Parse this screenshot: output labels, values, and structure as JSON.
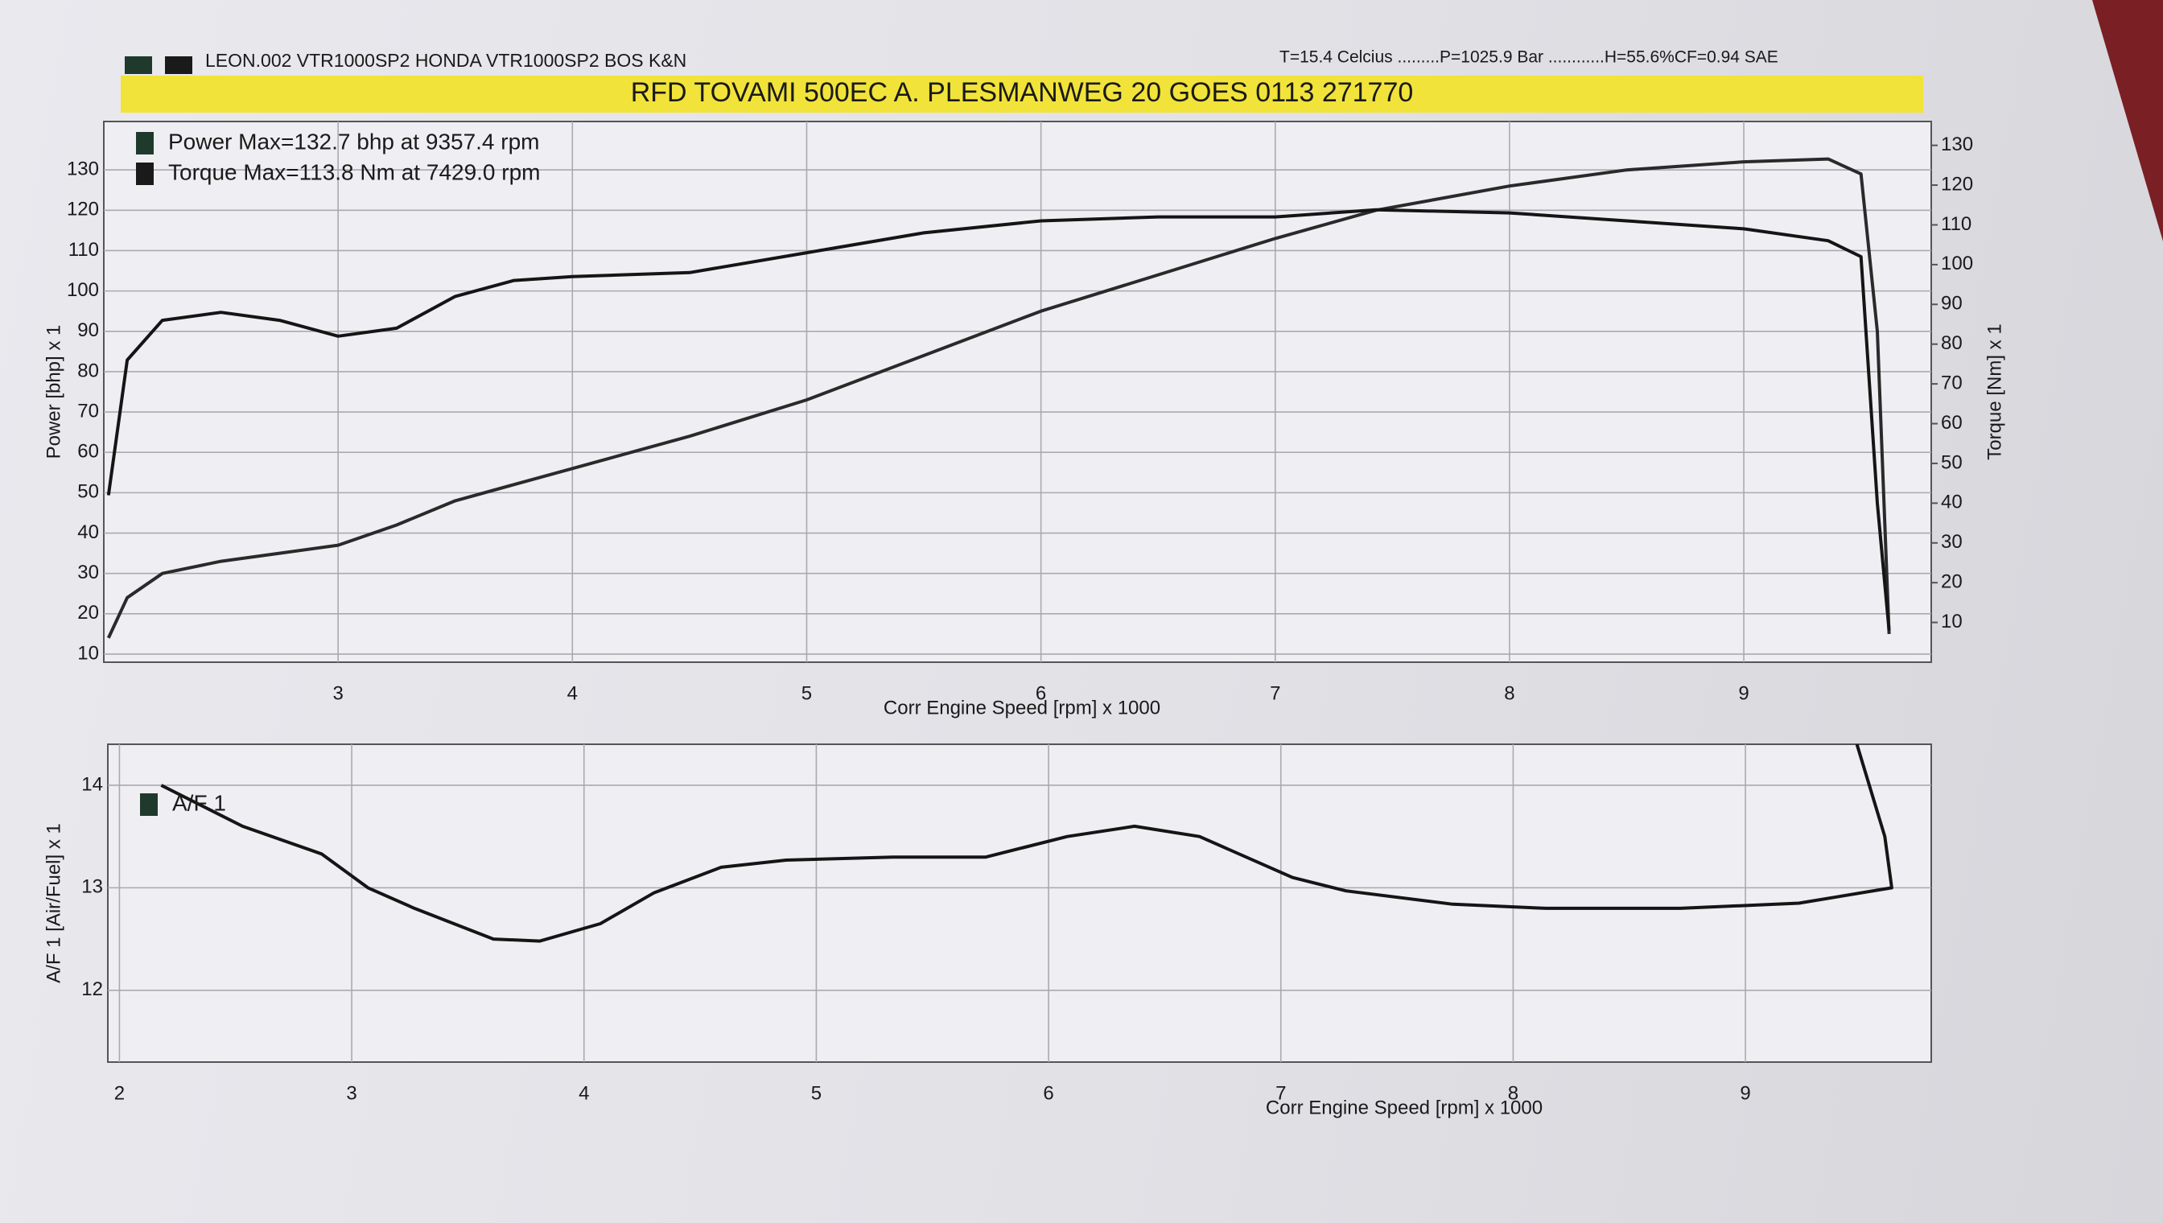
{
  "header": {
    "left": "LEON.002 VTR1000SP2  HONDA VTR1000SP2 BOS K&N",
    "right": "T=15.4 Celcius .........P=1025.9 Bar ............H=55.6%CF=0.94 SAE",
    "banner": "RFD TOVAMI 500EC  A. PLESMANWEG 20 GOES 0113 271770"
  },
  "chart_data": [
    {
      "type": "line",
      "xlabel": "Corr Engine Speed [rpm] x 1000",
      "ylabel": "Power [bhp] x 1",
      "y2label": "Torque [Nm] x 1",
      "x": [
        2.02,
        2.1,
        2.25,
        2.5,
        2.75,
        3.0,
        3.25,
        3.5,
        3.75,
        4.0,
        4.5,
        5.0,
        5.5,
        6.0,
        6.5,
        7.0,
        7.43,
        8.0,
        8.5,
        9.0,
        9.36,
        9.5,
        9.57,
        9.62
      ],
      "series": [
        {
          "name": "Power Max=132.7 bhp at 9357.4 rpm",
          "color": "#2a2a2a",
          "values": [
            14,
            24,
            30,
            33,
            35,
            37,
            42,
            48,
            52,
            56,
            64,
            73,
            84,
            95,
            104,
            113,
            120,
            126,
            130,
            132,
            132.7,
            129,
            90,
            15
          ]
        },
        {
          "name": "Torque  Max=113.8 Nm at 7429.0 rpm",
          "color": "#151515",
          "axis": "y2",
          "values": [
            42,
            76,
            86,
            88,
            86,
            82,
            84,
            92,
            96,
            97,
            98,
            103,
            108,
            111,
            112,
            112,
            113.8,
            113,
            111,
            109,
            106,
            102,
            40,
            8
          ]
        }
      ],
      "xlim": [
        2,
        9.8
      ],
      "xticks": [
        3,
        4,
        5,
        6,
        7,
        8,
        9
      ],
      "ylim": [
        8,
        142
      ],
      "yticks": [
        10,
        20,
        30,
        40,
        50,
        60,
        70,
        80,
        90,
        100,
        110,
        120,
        130
      ],
      "y2lim": [
        0,
        136
      ],
      "y2ticks": [
        10,
        20,
        30,
        40,
        50,
        60,
        70,
        80,
        90,
        100,
        110,
        120,
        130
      ],
      "grid": true
    },
    {
      "type": "line",
      "xlabel": "Corr Engine Speed [rpm] x 1000",
      "ylabel": "A/F 1 [Air/Fuel] x 1",
      "x": [
        2.18,
        2.53,
        2.87,
        3.07,
        3.27,
        3.61,
        3.81,
        4.07,
        4.3,
        4.59,
        4.87,
        5.33,
        5.73,
        6.08,
        6.37,
        6.65,
        7.05,
        7.28,
        7.74,
        8.14,
        8.72,
        9.23,
        9.63,
        9.6,
        9.48
      ],
      "series": [
        {
          "name": "A/F 1",
          "color": "#151515",
          "values": [
            14.0,
            13.6,
            13.33,
            13.0,
            12.8,
            12.5,
            12.48,
            12.65,
            12.95,
            13.2,
            13.27,
            13.3,
            13.3,
            13.5,
            13.6,
            13.5,
            13.1,
            12.97,
            12.84,
            12.8,
            12.8,
            12.85,
            13.0,
            13.5,
            14.4
          ]
        }
      ],
      "xlim": [
        1.95,
        9.8
      ],
      "xticks": [
        2,
        3,
        4,
        5,
        6,
        7,
        8,
        9
      ],
      "ylim": [
        11.3,
        14.4
      ],
      "yticks": [
        12,
        13,
        14
      ],
      "grid": true
    }
  ]
}
